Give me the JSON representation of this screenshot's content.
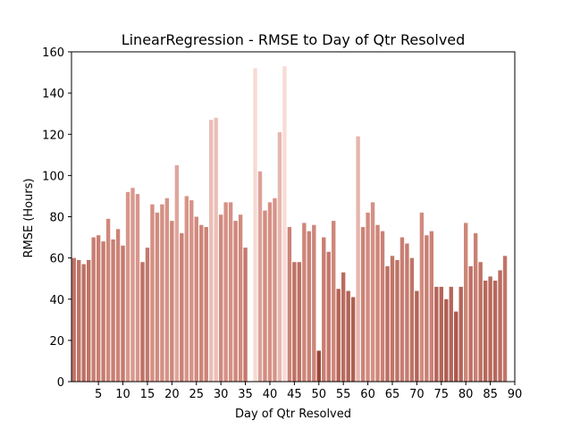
{
  "chart_data": {
    "type": "bar",
    "title": "LinearRegression - RMSE to Day of Qtr Resolved",
    "xlabel": "Day of Qtr Resolved",
    "ylabel": "RMSE (Hours)",
    "xlim": [
      -0.5,
      90
    ],
    "ylim": [
      0,
      160
    ],
    "xticks": [
      5,
      10,
      15,
      20,
      25,
      30,
      35,
      40,
      45,
      50,
      55,
      60,
      65,
      70,
      75,
      80,
      85,
      90
    ],
    "yticks": [
      0,
      20,
      40,
      60,
      80,
      100,
      120,
      140,
      160
    ],
    "grid": false,
    "legend": "none",
    "color_scale": {
      "low": "#9b4436",
      "mid": "#d48d81",
      "high": "#f8dbd5",
      "min_value": 15,
      "max_value": 153
    },
    "x": [
      0,
      1,
      2,
      3,
      4,
      5,
      6,
      7,
      8,
      9,
      10,
      11,
      12,
      13,
      14,
      15,
      16,
      17,
      18,
      19,
      20,
      21,
      22,
      23,
      24,
      25,
      26,
      27,
      28,
      29,
      30,
      31,
      32,
      33,
      34,
      35,
      36,
      37,
      38,
      39,
      40,
      41,
      42,
      43,
      44,
      45,
      46,
      47,
      48,
      49,
      50,
      51,
      52,
      53,
      54,
      55,
      56,
      57,
      58,
      59,
      60,
      61,
      62,
      63,
      64,
      65,
      66,
      67,
      68,
      69,
      70,
      71,
      72,
      73,
      74,
      75,
      76,
      77,
      78,
      79,
      80,
      81,
      82,
      83,
      84,
      85,
      86,
      87,
      88
    ],
    "values": [
      60,
      59,
      57,
      59,
      70,
      71,
      68,
      79,
      69,
      74,
      66,
      92,
      94,
      91,
      58,
      65,
      86,
      82,
      86,
      89,
      78,
      105,
      72,
      90,
      88,
      80,
      76,
      75,
      127,
      128,
      81,
      87,
      87,
      78,
      81,
      65,
      0,
      152,
      102,
      83,
      87,
      89,
      121,
      153,
      75,
      58,
      58,
      77,
      73,
      76,
      15,
      70,
      63,
      78,
      45,
      53,
      44,
      41,
      119,
      75,
      82,
      87,
      76,
      73,
      56,
      61,
      59,
      70,
      67,
      60,
      44,
      82,
      71,
      73,
      46,
      46,
      40,
      46,
      34,
      46,
      77,
      56,
      72,
      58,
      49,
      51,
      49,
      54,
      61
    ]
  }
}
